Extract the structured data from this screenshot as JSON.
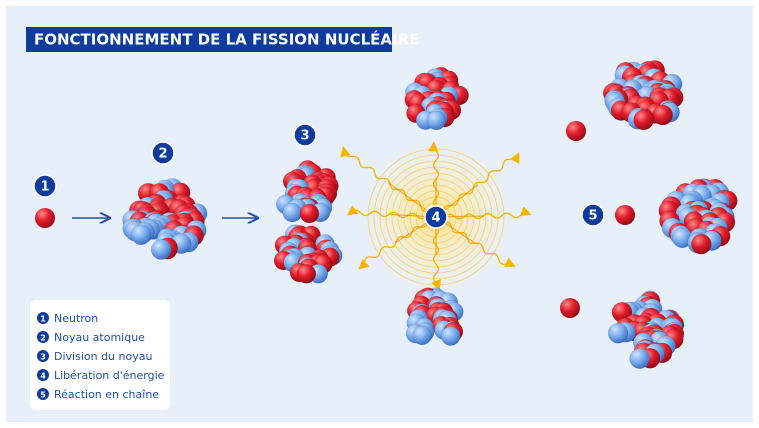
{
  "title": "FONCTIONNEMENT DE LA FISSION NUCLÉAIRE",
  "steps": [
    "1",
    "2",
    "3",
    "4",
    "5"
  ],
  "legend": [
    {
      "number": "1",
      "label": "Neutron"
    },
    {
      "number": "2",
      "label": "Noyau atomique"
    },
    {
      "number": "3",
      "label": "Division du noyau"
    },
    {
      "number": "4",
      "label": "Libération d'énergie"
    },
    {
      "number": "5",
      "label": "Réaction en chaîne"
    }
  ]
}
